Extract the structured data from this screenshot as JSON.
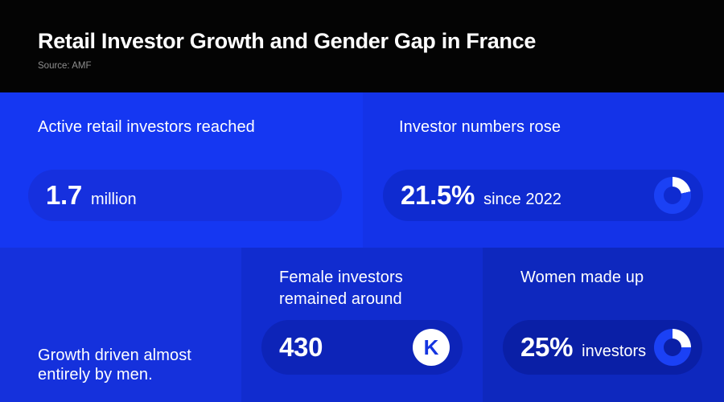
{
  "header": {
    "title": "Retail Investor Growth and Gender Gap in France",
    "source": "Source: AMF"
  },
  "colors": {
    "header_bg": "#040404",
    "source_text": "#8f8f8f",
    "card_active_bg": "#1537f2",
    "card_growth_bg": "#1433e8",
    "card_men_bg": "#1531dc",
    "card_female_bg": "#112ccf",
    "card_women_bg": "#0e28be",
    "pill_active_bg": "#1630de",
    "pill_growth_bg": "#0f2bd0",
    "pill_female_bg": "#0d24b8",
    "pill_women_bg": "#0a1fa6",
    "donut_ring": "#1b41f5",
    "donut_segment": "#ffffff",
    "badge_text": "#1535e0"
  },
  "cards": {
    "active": {
      "label": "Active retail investors reached",
      "value": "1.7",
      "unit": "million"
    },
    "growth": {
      "label": "Investor numbers rose",
      "value": "21.5%",
      "unit": "since 2022",
      "donut_percent": 21.5
    },
    "men": {
      "label": "Growth driven almost entirely by men."
    },
    "female": {
      "label": "Female investors remained around",
      "value": "430",
      "badge": "K"
    },
    "women": {
      "label": "Women made up",
      "value": "25%",
      "unit": "investors",
      "donut_percent": 25
    }
  },
  "chart_data": {
    "type": "table",
    "title": "Retail Investor Growth and Gender Gap in France",
    "source": "AMF",
    "stats": [
      {
        "label": "Active retail investors reached",
        "value": 1.7,
        "unit": "million"
      },
      {
        "label": "Investor numbers rose",
        "value": 21.5,
        "unit": "% since 2022"
      },
      {
        "label": "Growth driven almost entirely by men.",
        "value": null,
        "unit": null
      },
      {
        "label": "Female investors remained around",
        "value": 430,
        "unit": "K"
      },
      {
        "label": "Women made up",
        "value": 25,
        "unit": "% of investors"
      }
    ],
    "donuts": [
      {
        "label": "Investor numbers rose",
        "percent": 21.5
      },
      {
        "label": "Women made up",
        "percent": 25
      }
    ]
  }
}
